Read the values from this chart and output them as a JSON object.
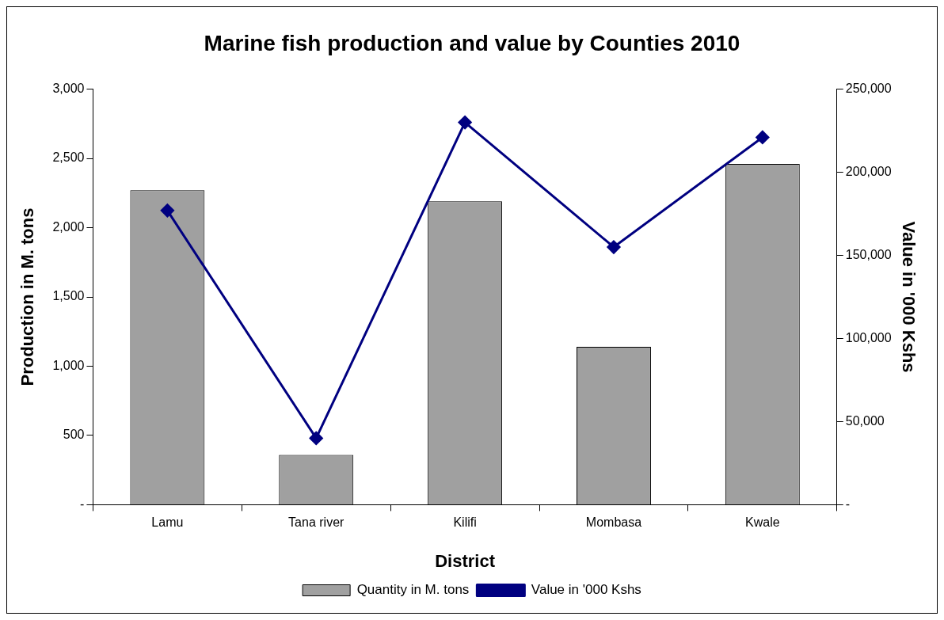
{
  "chart_data": {
    "type": "bar",
    "title": "Marine fish production and value by Counties 2010",
    "xlabel": "District",
    "ylabel": "Production in M. tons",
    "y2label": "Value in '000 Kshs",
    "categories": [
      "Lamu",
      "Tana river",
      "Kilifi",
      "Mombasa",
      "Kwale"
    ],
    "series": [
      {
        "name": "Quantity in M. tons",
        "color": "#a0a0a0",
        "values": [
          2270,
          360,
          2190,
          1140,
          2460
        ]
      },
      {
        "name": "Value in '000 Kshs",
        "type": "line",
        "axis": "y2",
        "color": "#000080",
        "marker": "diamond",
        "values": [
          177000,
          40000,
          230000,
          155000,
          221000
        ]
      }
    ],
    "ylim": [
      0,
      3000
    ],
    "yticks": [
      {
        "value": 0,
        "label": "-"
      },
      {
        "value": 500,
        "label": "500"
      },
      {
        "value": 1000,
        "label": "1,000"
      },
      {
        "value": 1500,
        "label": "1,500"
      },
      {
        "value": 2000,
        "label": "2,000"
      },
      {
        "value": 2500,
        "label": "2,500"
      },
      {
        "value": 3000,
        "label": "3,000"
      }
    ],
    "y2lim": [
      0,
      250000
    ],
    "y2ticks": [
      {
        "value": 0,
        "label": "-"
      },
      {
        "value": 50000,
        "label": "50,000"
      },
      {
        "value": 100000,
        "label": "100,000"
      },
      {
        "value": 150000,
        "label": "150,000"
      },
      {
        "value": 200000,
        "label": "200,000"
      },
      {
        "value": 250000,
        "label": "250,000"
      }
    ],
    "grid": false,
    "legend": "bottom"
  }
}
